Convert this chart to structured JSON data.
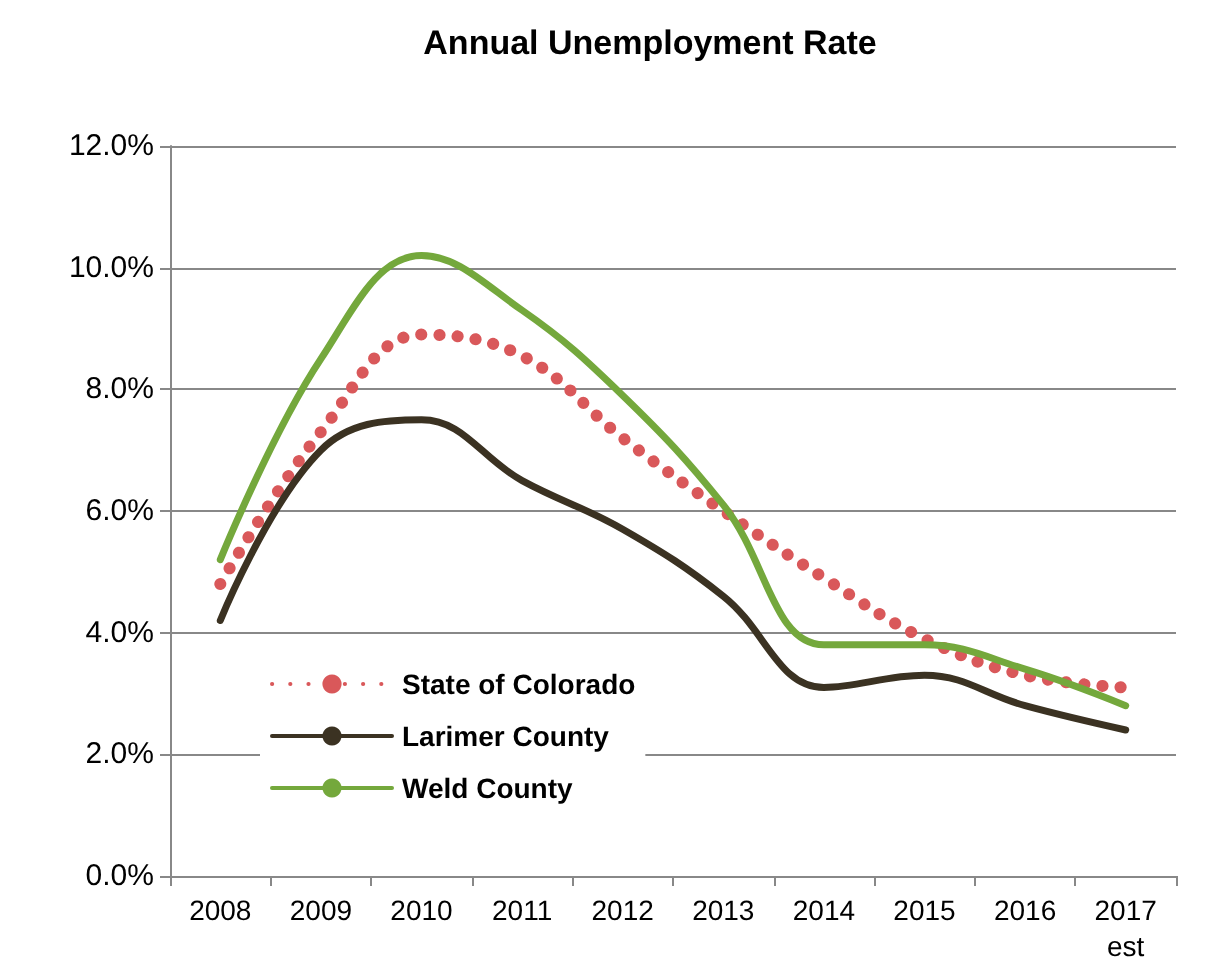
{
  "chart_data": {
    "type": "line",
    "title": "Annual Unemployment Rate",
    "categories": [
      "2008",
      "2009",
      "2010",
      "2011",
      "2012",
      "2013",
      "2014",
      "2015",
      "2016",
      "2017\nest"
    ],
    "series": [
      {
        "name": "State of Colorado",
        "color": "#d9585a",
        "line_style": "dotted",
        "values": [
          4.8,
          7.3,
          8.9,
          8.55,
          7.2,
          6.0,
          4.9,
          3.9,
          3.3,
          3.1
        ]
      },
      {
        "name": "Larimer County",
        "color": "#3b3222",
        "line_style": "solid",
        "values": [
          4.2,
          7.0,
          7.5,
          6.5,
          5.7,
          4.6,
          3.1,
          3.3,
          2.8,
          2.4
        ]
      },
      {
        "name": "Weld County",
        "color": "#74a83c",
        "line_style": "solid",
        "values": [
          5.2,
          8.5,
          10.2,
          9.3,
          7.9,
          6.1,
          3.8,
          3.8,
          3.4,
          2.8
        ]
      }
    ],
    "ylim": [
      0,
      12
    ],
    "yticks": [
      {
        "value": 0,
        "label": "0.0%"
      },
      {
        "value": 2,
        "label": "2.0%"
      },
      {
        "value": 4,
        "label": "4.0%"
      },
      {
        "value": 6,
        "label": "6.0%"
      },
      {
        "value": 8,
        "label": "8.0%"
      },
      {
        "value": 10,
        "label": "10.0%"
      },
      {
        "value": 12,
        "label": "12.0%"
      }
    ],
    "grid": "y",
    "legend": "bottom left",
    "marker": "none"
  }
}
